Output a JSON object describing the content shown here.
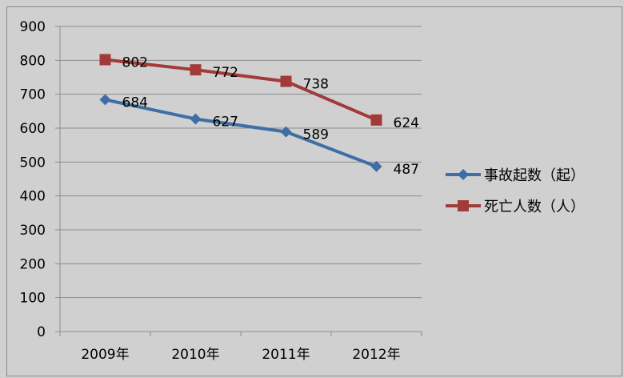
{
  "chart_data": {
    "type": "line",
    "categories": [
      "2009年",
      "2010年",
      "2011年",
      "2012年"
    ],
    "series": [
      {
        "name": "事故起数（起）",
        "values": [
          684,
          627,
          589,
          487
        ],
        "color": "#3f6ea6",
        "marker": "diamond"
      },
      {
        "name": "死亡人数（人）",
        "values": [
          802,
          772,
          738,
          624
        ],
        "color": "#a33a3a",
        "marker": "square"
      }
    ],
    "yticks": [
      0,
      100,
      200,
      300,
      400,
      500,
      600,
      700,
      800,
      900
    ],
    "ylim": [
      0,
      900
    ],
    "grid": true,
    "legend": "right",
    "title": "",
    "xlabel": "",
    "ylabel": ""
  }
}
